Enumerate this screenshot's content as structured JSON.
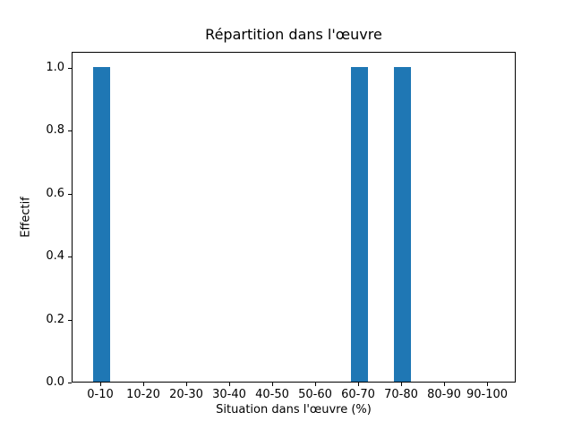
{
  "chart_data": {
    "type": "bar",
    "title": "Répartition dans l'œuvre",
    "xlabel": "Situation dans l'œuvre (%)",
    "ylabel": "Effectif",
    "categories": [
      "0-10",
      "10-20",
      "20-30",
      "30-40",
      "40-50",
      "50-60",
      "60-70",
      "70-80",
      "80-90",
      "90-100"
    ],
    "values": [
      1,
      0,
      0,
      0,
      0,
      0,
      1,
      1,
      0,
      0
    ],
    "yticks": [
      0.0,
      0.2,
      0.4,
      0.6,
      0.8,
      1.0
    ],
    "ytick_labels": [
      "0.0",
      "0.2",
      "0.4",
      "0.6",
      "0.8",
      "1.0"
    ],
    "ylim": [
      0,
      1.05
    ],
    "bar_color": "#1f77b4",
    "axis_color": "#000000",
    "background_color": "#ffffff",
    "grid": false,
    "legend": "none"
  }
}
